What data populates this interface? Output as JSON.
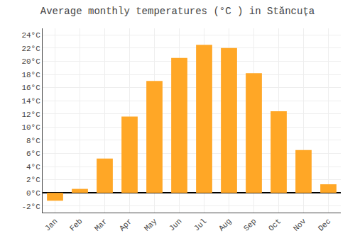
{
  "chart_data": {
    "type": "bar",
    "title": "Average monthly temperatures (°C ) in Stăncuța",
    "categories": [
      "Jan",
      "Feb",
      "Mar",
      "Apr",
      "May",
      "Jun",
      "Jul",
      "Aug",
      "Sep",
      "Oct",
      "Nov",
      "Dec"
    ],
    "values": [
      -1.2,
      0.6,
      5.2,
      11.6,
      17.0,
      20.5,
      22.5,
      22.0,
      18.2,
      12.4,
      6.5,
      1.3
    ],
    "color": "#FFA726",
    "ylim": [
      -3,
      25
    ],
    "yticks": [
      {
        "value": -2,
        "label": "-2°C"
      },
      {
        "value": 0,
        "label": "0°C"
      },
      {
        "value": 2,
        "label": "2°C"
      },
      {
        "value": 4,
        "label": "4°C"
      },
      {
        "value": 6,
        "label": "6°C"
      },
      {
        "value": 8,
        "label": "8°C"
      },
      {
        "value": 10,
        "label": "10°C"
      },
      {
        "value": 12,
        "label": "12°C"
      },
      {
        "value": 14,
        "label": "14°C"
      },
      {
        "value": 16,
        "label": "16°C"
      },
      {
        "value": 18,
        "label": "18°C"
      },
      {
        "value": 20,
        "label": "20°C"
      },
      {
        "value": 22,
        "label": "22°C"
      },
      {
        "value": 24,
        "label": "24°C"
      }
    ],
    "grid": true
  }
}
